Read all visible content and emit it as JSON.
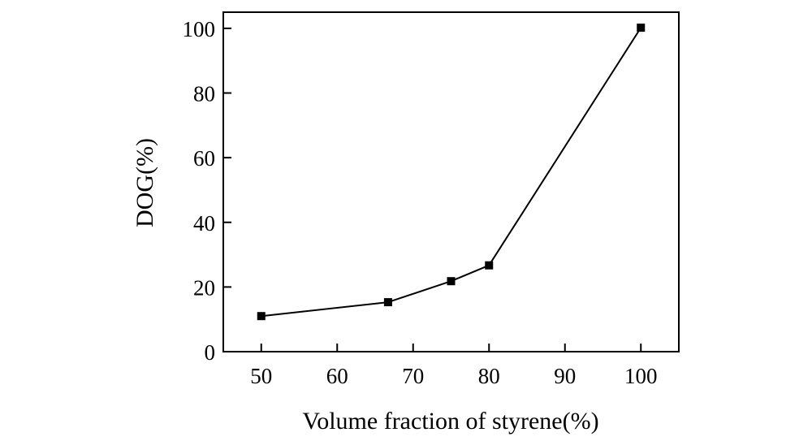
{
  "chart_data": {
    "type": "line",
    "title": "",
    "xlabel": "Volume fraction of styrene(%)",
    "ylabel": "DOG(%)",
    "xlim": [
      45,
      105
    ],
    "ylim": [
      0,
      105
    ],
    "xticks": [
      50,
      60,
      70,
      80,
      90,
      100
    ],
    "yticks": [
      0,
      20,
      40,
      60,
      80,
      100
    ],
    "grid": false,
    "marker": "square",
    "series": [
      {
        "name": "DOG",
        "x": [
          50,
          66.7,
          75,
          80,
          100
        ],
        "y": [
          11,
          15.3,
          21.8,
          26.7,
          100.2
        ]
      }
    ],
    "colors": {
      "line": "#000000",
      "marker": "#000000",
      "axis": "#000000"
    }
  }
}
